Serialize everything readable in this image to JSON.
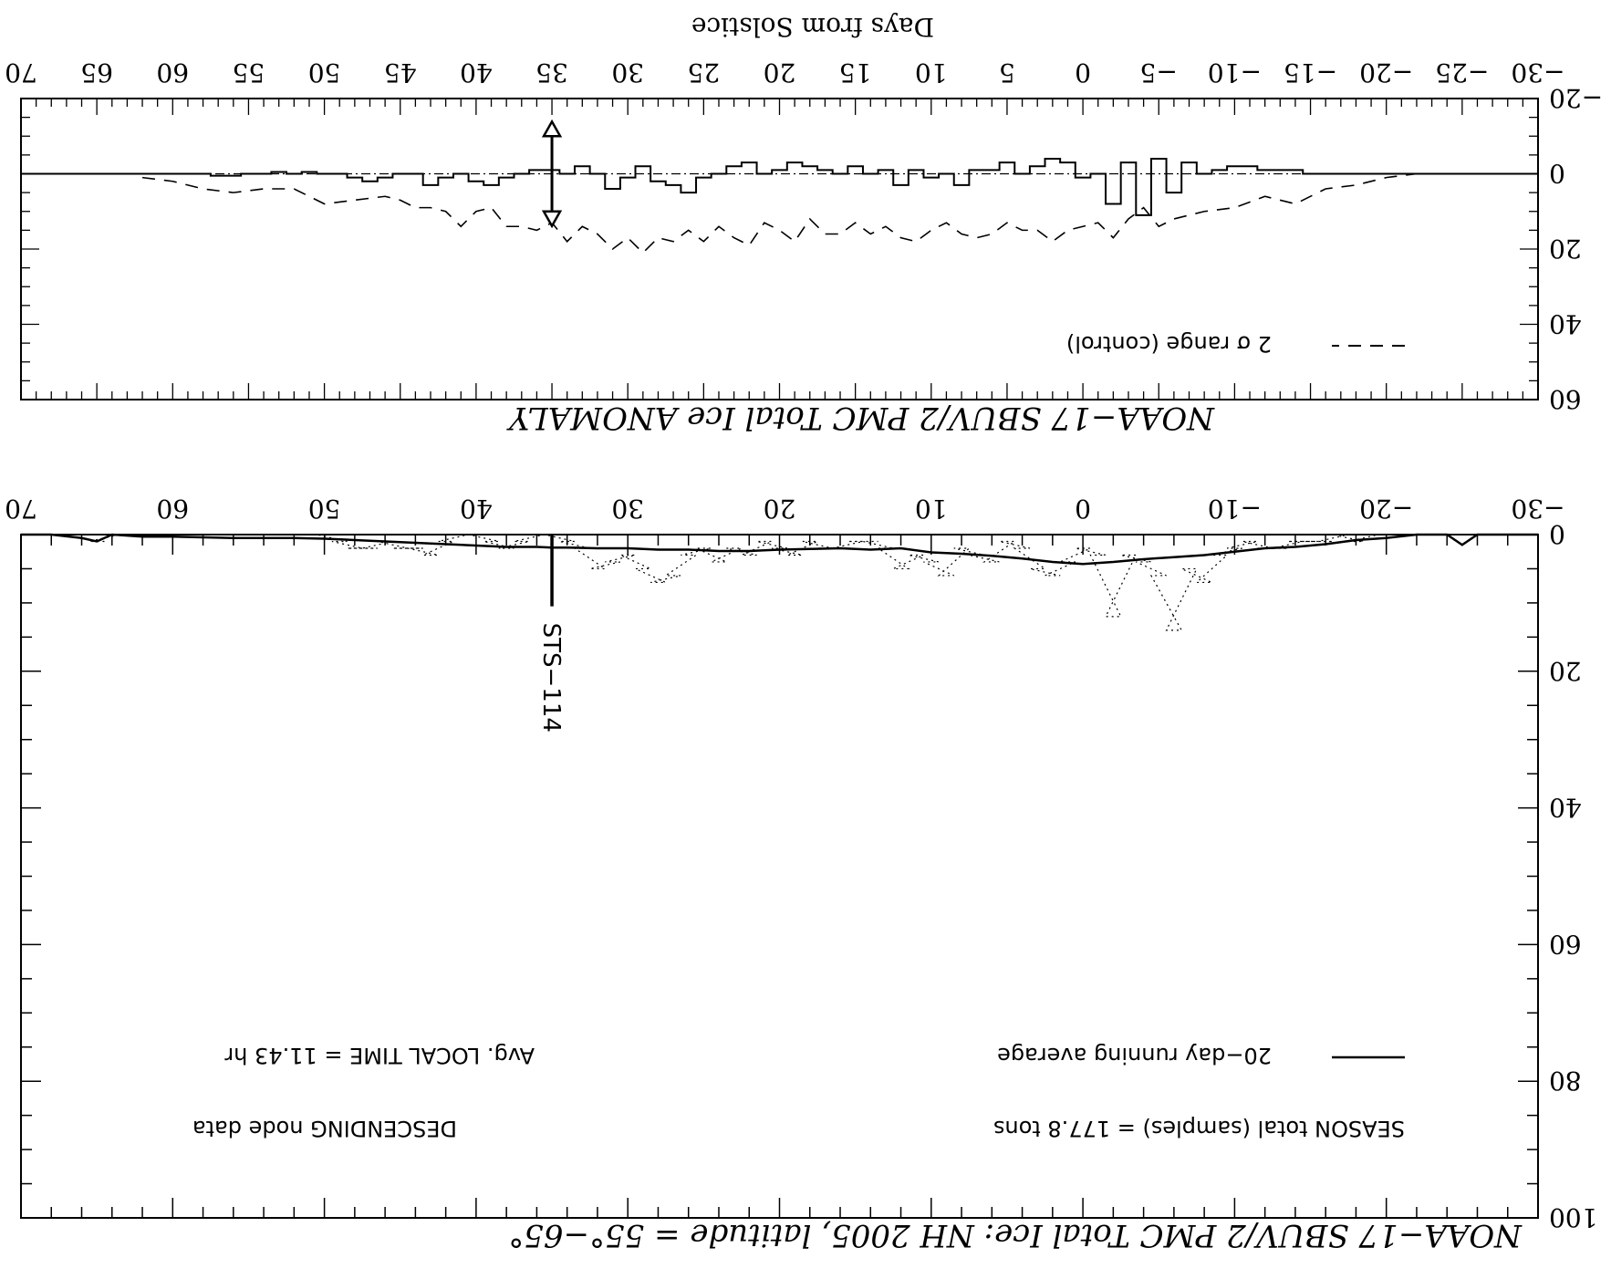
{
  "chart_data": [
    {
      "panel": "top",
      "type": "line",
      "title": "NOAA−17 SBUV/2 PMC Total Ice ANOMALY",
      "xlabel": "Days from Solstice",
      "x_ticks": [
        "70",
        "65",
        "60",
        "55",
        "50",
        "45",
        "40",
        "35",
        "30",
        "25",
        "20",
        "15",
        "10",
        "5",
        "0",
        "−5",
        "−10",
        "−15",
        "−20",
        "−25",
        "−30"
      ],
      "y_ticks": [
        "60",
        "40",
        "20",
        "0",
        "−20"
      ],
      "xlim": [
        70,
        -30
      ],
      "ylim": [
        60,
        -20
      ],
      "legend_label": "2 σ range (control)",
      "series": [
        {
          "name": "anomaly",
          "style": "solid-step",
          "x": [
            60,
            59,
            58,
            57,
            56,
            55,
            54,
            53,
            52,
            51,
            50,
            49,
            48,
            47,
            46,
            45,
            44,
            43,
            42,
            41,
            40,
            39,
            38,
            37,
            36,
            35,
            34,
            33,
            32,
            31,
            30,
            29,
            28,
            27,
            26,
            25,
            24,
            23,
            22,
            21,
            20,
            19,
            18,
            17,
            16,
            15,
            14,
            13,
            12,
            11,
            10,
            9,
            8,
            7,
            6,
            5,
            4,
            3,
            2,
            1,
            0,
            -1,
            -2,
            -3,
            -4,
            -5,
            -6,
            -7,
            -8,
            -9,
            -10,
            -11,
            -12,
            -13,
            -14,
            -15,
            -16,
            -17,
            -18,
            -19,
            -20
          ],
          "y": [
            0,
            0,
            0,
            0.5,
            0.5,
            0,
            0,
            -0.5,
            0,
            -0.5,
            0,
            0,
            1,
            2,
            1,
            0,
            0,
            3,
            1,
            0,
            2,
            3,
            1,
            0,
            -1,
            -1,
            0,
            -2,
            0,
            4,
            1,
            -2,
            2,
            3,
            5,
            1,
            0,
            -2,
            -3,
            0,
            -1,
            -3,
            -2,
            -1,
            0,
            -2,
            0,
            -1,
            3,
            -1,
            1,
            0,
            3,
            -1,
            -1,
            -3,
            0,
            -2,
            -4,
            -3,
            1,
            0,
            8,
            -3,
            11,
            -4,
            5,
            -3,
            0,
            -1,
            -2,
            -2,
            -1,
            -1,
            -1,
            0,
            0,
            0,
            0,
            0,
            0
          ]
        },
        {
          "name": "2 σ range (control)",
          "style": "dashed",
          "x": [
            62,
            60,
            58,
            56,
            54,
            52,
            50,
            48,
            46,
            45,
            44,
            43,
            42,
            41,
            40,
            39,
            38,
            37,
            36,
            35,
            34,
            33,
            32,
            31,
            30,
            29,
            28,
            27,
            26,
            25,
            24,
            23,
            22,
            21,
            20,
            19,
            18,
            17,
            16,
            15,
            14,
            13,
            12,
            11,
            10,
            9,
            8,
            7,
            6,
            5,
            4,
            3,
            2,
            1,
            0,
            -1,
            -2,
            -3,
            -4,
            -5,
            -6,
            -7,
            -8,
            -10,
            -12,
            -14,
            -16,
            -18,
            -20,
            -22
          ],
          "y": [
            1,
            2,
            4,
            5,
            4,
            4,
            8,
            7,
            6,
            7,
            9,
            9,
            10,
            14,
            10,
            9,
            14,
            14,
            15,
            13,
            18,
            14,
            16,
            20,
            17,
            21,
            17,
            18,
            15,
            18,
            14,
            17,
            19,
            13,
            15,
            18,
            12,
            16,
            16,
            13,
            16,
            14,
            17,
            18,
            15,
            13,
            16,
            17,
            16,
            13,
            15,
            15,
            18,
            15,
            14,
            13,
            17,
            12,
            9,
            14,
            12,
            11,
            10,
            9,
            6,
            8,
            4,
            3,
            1,
            0
          ]
        }
      ],
      "marker": {
        "x": 35,
        "y_from": -10,
        "y_to": 10
      }
    },
    {
      "panel": "bottom",
      "type": "line",
      "title": "NOAA−17 SBUV/2 PMC Total Ice:  NH 2005, latitude = 55°−65°",
      "x_ticks": [
        "70",
        "60",
        "50",
        "40",
        "30",
        "20",
        "10",
        "0",
        "−10",
        "−20",
        "−30"
      ],
      "y_ticks": [
        "100",
        "80",
        "60",
        "40",
        "20",
        "0"
      ],
      "xlim": [
        70,
        -30
      ],
      "ylim": [
        100,
        0
      ],
      "legend_label": "20−day running average",
      "season_text": "SEASON total (samples) = 177.8 tons",
      "node_text": "DESCENDING node data",
      "local_time_text": "Avg. LOCAL TIME = 11.43 hr",
      "marker_label": "STS−114",
      "marker": {
        "x": 35,
        "y_from": 0,
        "y_to": 10.5
      },
      "series": [
        {
          "name": "samples",
          "style": "dotted-step",
          "x": [
            65,
            64,
            63,
            62,
            61,
            60,
            59,
            58,
            57,
            56,
            55,
            54,
            53,
            52,
            51,
            50,
            49,
            48,
            47,
            46,
            45,
            44,
            43,
            42,
            41,
            40,
            39,
            38,
            37,
            36,
            35,
            34,
            33,
            32,
            31,
            30,
            29,
            28,
            27,
            26,
            25,
            24,
            23,
            22,
            21,
            20,
            19,
            18,
            17,
            16,
            15,
            14,
            13,
            12,
            11,
            10,
            9,
            8,
            7,
            6,
            5,
            4,
            3,
            2,
            1,
            0,
            -1,
            -2,
            -3,
            -4,
            -5,
            -6,
            -7,
            -8,
            -9,
            -10,
            -11,
            -12,
            -13,
            -14,
            -15,
            -16,
            -17,
            -18,
            -19,
            -20
          ],
          "y": [
            1,
            0,
            0,
            0,
            0,
            0,
            0,
            0,
            0,
            0,
            0,
            0,
            0,
            0,
            0,
            0,
            1,
            2,
            2,
            1,
            2,
            2,
            3,
            1,
            0,
            0,
            1,
            2,
            1,
            0,
            0,
            1,
            2,
            5,
            4,
            3,
            5,
            7,
            6,
            3,
            2,
            4,
            2,
            3,
            1,
            2,
            3,
            1,
            2,
            2,
            1,
            1,
            2,
            5,
            3,
            4,
            6,
            2,
            3,
            4,
            1,
            2,
            5,
            6,
            4,
            2,
            3,
            12,
            3,
            4,
            6,
            14,
            5,
            7,
            3,
            2,
            1,
            2,
            2,
            1,
            1,
            1,
            0,
            1,
            0,
            0
          ]
        },
        {
          "name": "20−day running average",
          "style": "solid",
          "x": [
            70,
            68,
            66,
            65,
            64,
            62,
            60,
            58,
            56,
            54,
            52,
            50,
            48,
            46,
            44,
            42,
            40,
            38,
            36,
            35,
            34,
            32,
            30,
            28,
            26,
            24,
            22,
            20,
            18,
            16,
            14,
            12,
            10,
            8,
            6,
            4,
            2,
            0,
            -2,
            -4,
            -6,
            -8,
            -10,
            -12,
            -14,
            -16,
            -18,
            -20,
            -22,
            -24,
            -25,
            -26,
            -28,
            -30
          ],
          "y": [
            0,
            0,
            0.5,
            1,
            0,
            0.3,
            0.3,
            0.4,
            0.5,
            0.5,
            0.5,
            0.6,
            0.8,
            1,
            1.2,
            1.4,
            1.6,
            1.8,
            1.8,
            1.9,
            1.9,
            2,
            2,
            2.2,
            2.2,
            2.4,
            2.4,
            2.2,
            2.1,
            2.0,
            2.2,
            2.0,
            2.6,
            2.8,
            3.1,
            3.5,
            4,
            4.3,
            4,
            3.6,
            3.3,
            3,
            2.5,
            2,
            1.8,
            1.4,
            0.8,
            0.5,
            0,
            0,
            1.5,
            0,
            0,
            0
          ]
        }
      ]
    }
  ]
}
